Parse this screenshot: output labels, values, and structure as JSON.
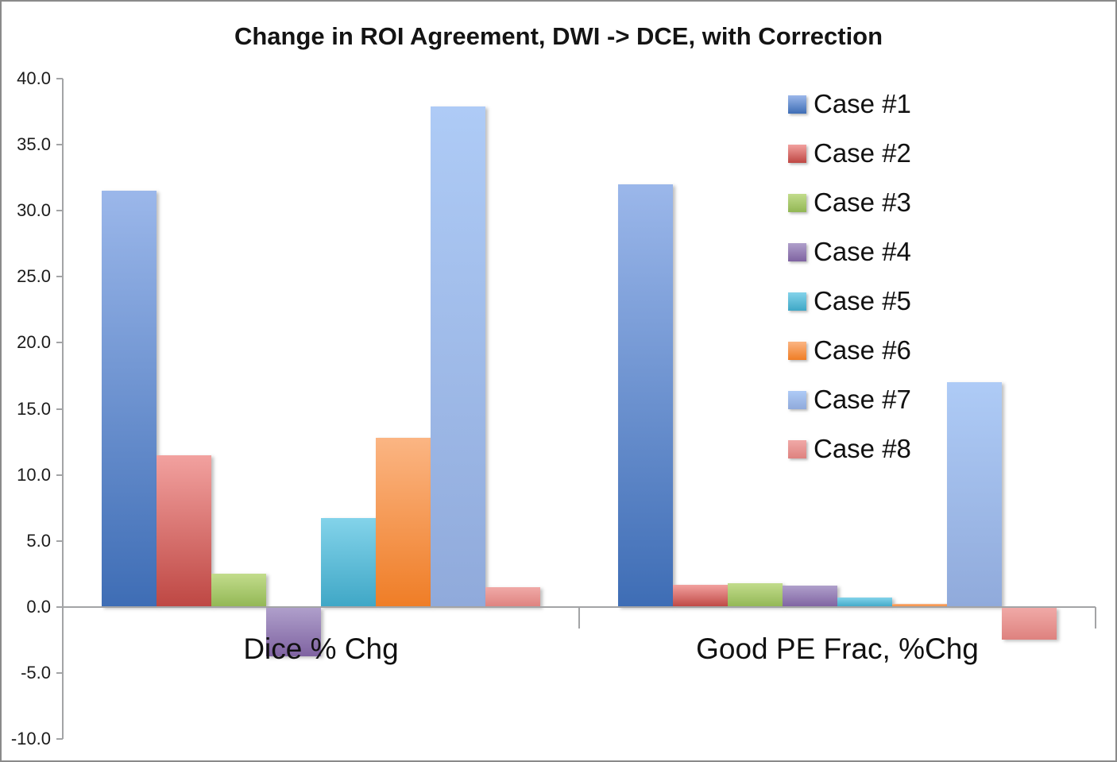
{
  "title": "Change in ROI Agreement, DWI -> DCE, with Correction",
  "chart_data": {
    "type": "bar",
    "categories": [
      "Dice % Chg",
      "Good PE Frac, %Chg"
    ],
    "series": [
      {
        "name": "Case #1",
        "values": [
          31.5,
          32.0
        ],
        "color_top": "#9bb7ea",
        "color_bottom": "#3e6db5"
      },
      {
        "name": "Case #2",
        "values": [
          11.5,
          1.7
        ],
        "color_top": "#f2a19f",
        "color_bottom": "#be4743"
      },
      {
        "name": "Case #3",
        "values": [
          2.5,
          1.8
        ],
        "color_top": "#c2dc8c",
        "color_bottom": "#92b754"
      },
      {
        "name": "Case #4",
        "values": [
          -3.7,
          1.6
        ],
        "color_top": "#af9fcb",
        "color_bottom": "#7f63a1"
      },
      {
        "name": "Case #5",
        "values": [
          6.7,
          0.7
        ],
        "color_top": "#83d3ea",
        "color_bottom": "#3fa7c6"
      },
      {
        "name": "Case #6",
        "values": [
          12.8,
          0.2
        ],
        "color_top": "#fbb583",
        "color_bottom": "#ef7d26"
      },
      {
        "name": "Case #7",
        "values": [
          37.9,
          17.0
        ],
        "color_top": "#aecbf6",
        "color_bottom": "#90aadb"
      },
      {
        "name": "Case #8",
        "values": [
          1.5,
          -2.4
        ],
        "color_top": "#f0a9a7",
        "color_bottom": "#de827f"
      }
    ],
    "ylim": [
      -10,
      40
    ],
    "ytick_step": 5,
    "ytick_labels": [
      "40.0",
      "35.0",
      "30.0",
      "25.0",
      "20.0",
      "15.0",
      "10.0",
      "5.0",
      "0.0",
      "-5.0",
      "-10.0"
    ],
    "legend_position": "right",
    "grid": false,
    "axis_color": "#a3a4a6"
  }
}
